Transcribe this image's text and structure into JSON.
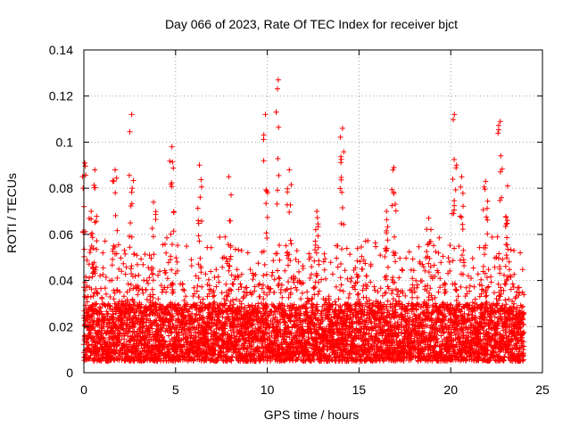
{
  "chart_data": {
    "type": "scatter",
    "title": "Day 066 of 2023, Rate Of TEC Index for receiver bjct",
    "xlabel": "GPS time / hours",
    "ylabel": "ROTI / TECUs",
    "xlim": [
      0,
      25
    ],
    "ylim": [
      0,
      0.14
    ],
    "xticks": [
      0,
      5,
      10,
      15,
      20,
      25
    ],
    "yticks": [
      0,
      0.02,
      0.04,
      0.06,
      0.08,
      0.1,
      0.12,
      0.14
    ],
    "xtick_labels": [
      "0",
      "5",
      "10",
      "15",
      "20",
      "25"
    ],
    "ytick_labels": [
      "0",
      "0.02",
      "0.04",
      "0.06",
      "0.08",
      "0.1",
      "0.12",
      "0.14"
    ],
    "grid": true,
    "marker": "+",
    "color": "#ff0000",
    "series": [
      {
        "name": "ROTI",
        "description_of_data_range": "dense points from 0.0 to 24.0 h",
        "baseline_band": [
          0.005,
          0.03
        ],
        "upper_envelope": [
          {
            "x": 0.05,
            "y": 0.091
          },
          {
            "x": 0.4,
            "y": 0.07
          },
          {
            "x": 0.6,
            "y": 0.088
          },
          {
            "x": 1.7,
            "y": 0.088
          },
          {
            "x": 2.6,
            "y": 0.112
          },
          {
            "x": 3.8,
            "y": 0.074
          },
          {
            "x": 4.8,
            "y": 0.098
          },
          {
            "x": 6.3,
            "y": 0.09
          },
          {
            "x": 7.9,
            "y": 0.085
          },
          {
            "x": 9.9,
            "y": 0.112
          },
          {
            "x": 10.6,
            "y": 0.127
          },
          {
            "x": 11.2,
            "y": 0.088
          },
          {
            "x": 12.7,
            "y": 0.07
          },
          {
            "x": 14.1,
            "y": 0.106
          },
          {
            "x": 16.5,
            "y": 0.07
          },
          {
            "x": 16.9,
            "y": 0.089
          },
          {
            "x": 18.8,
            "y": 0.067
          },
          {
            "x": 20.2,
            "y": 0.112
          },
          {
            "x": 20.6,
            "y": 0.085
          },
          {
            "x": 21.9,
            "y": 0.083
          },
          {
            "x": 22.7,
            "y": 0.109
          },
          {
            "x": 23.1,
            "y": 0.081
          }
        ]
      }
    ]
  }
}
